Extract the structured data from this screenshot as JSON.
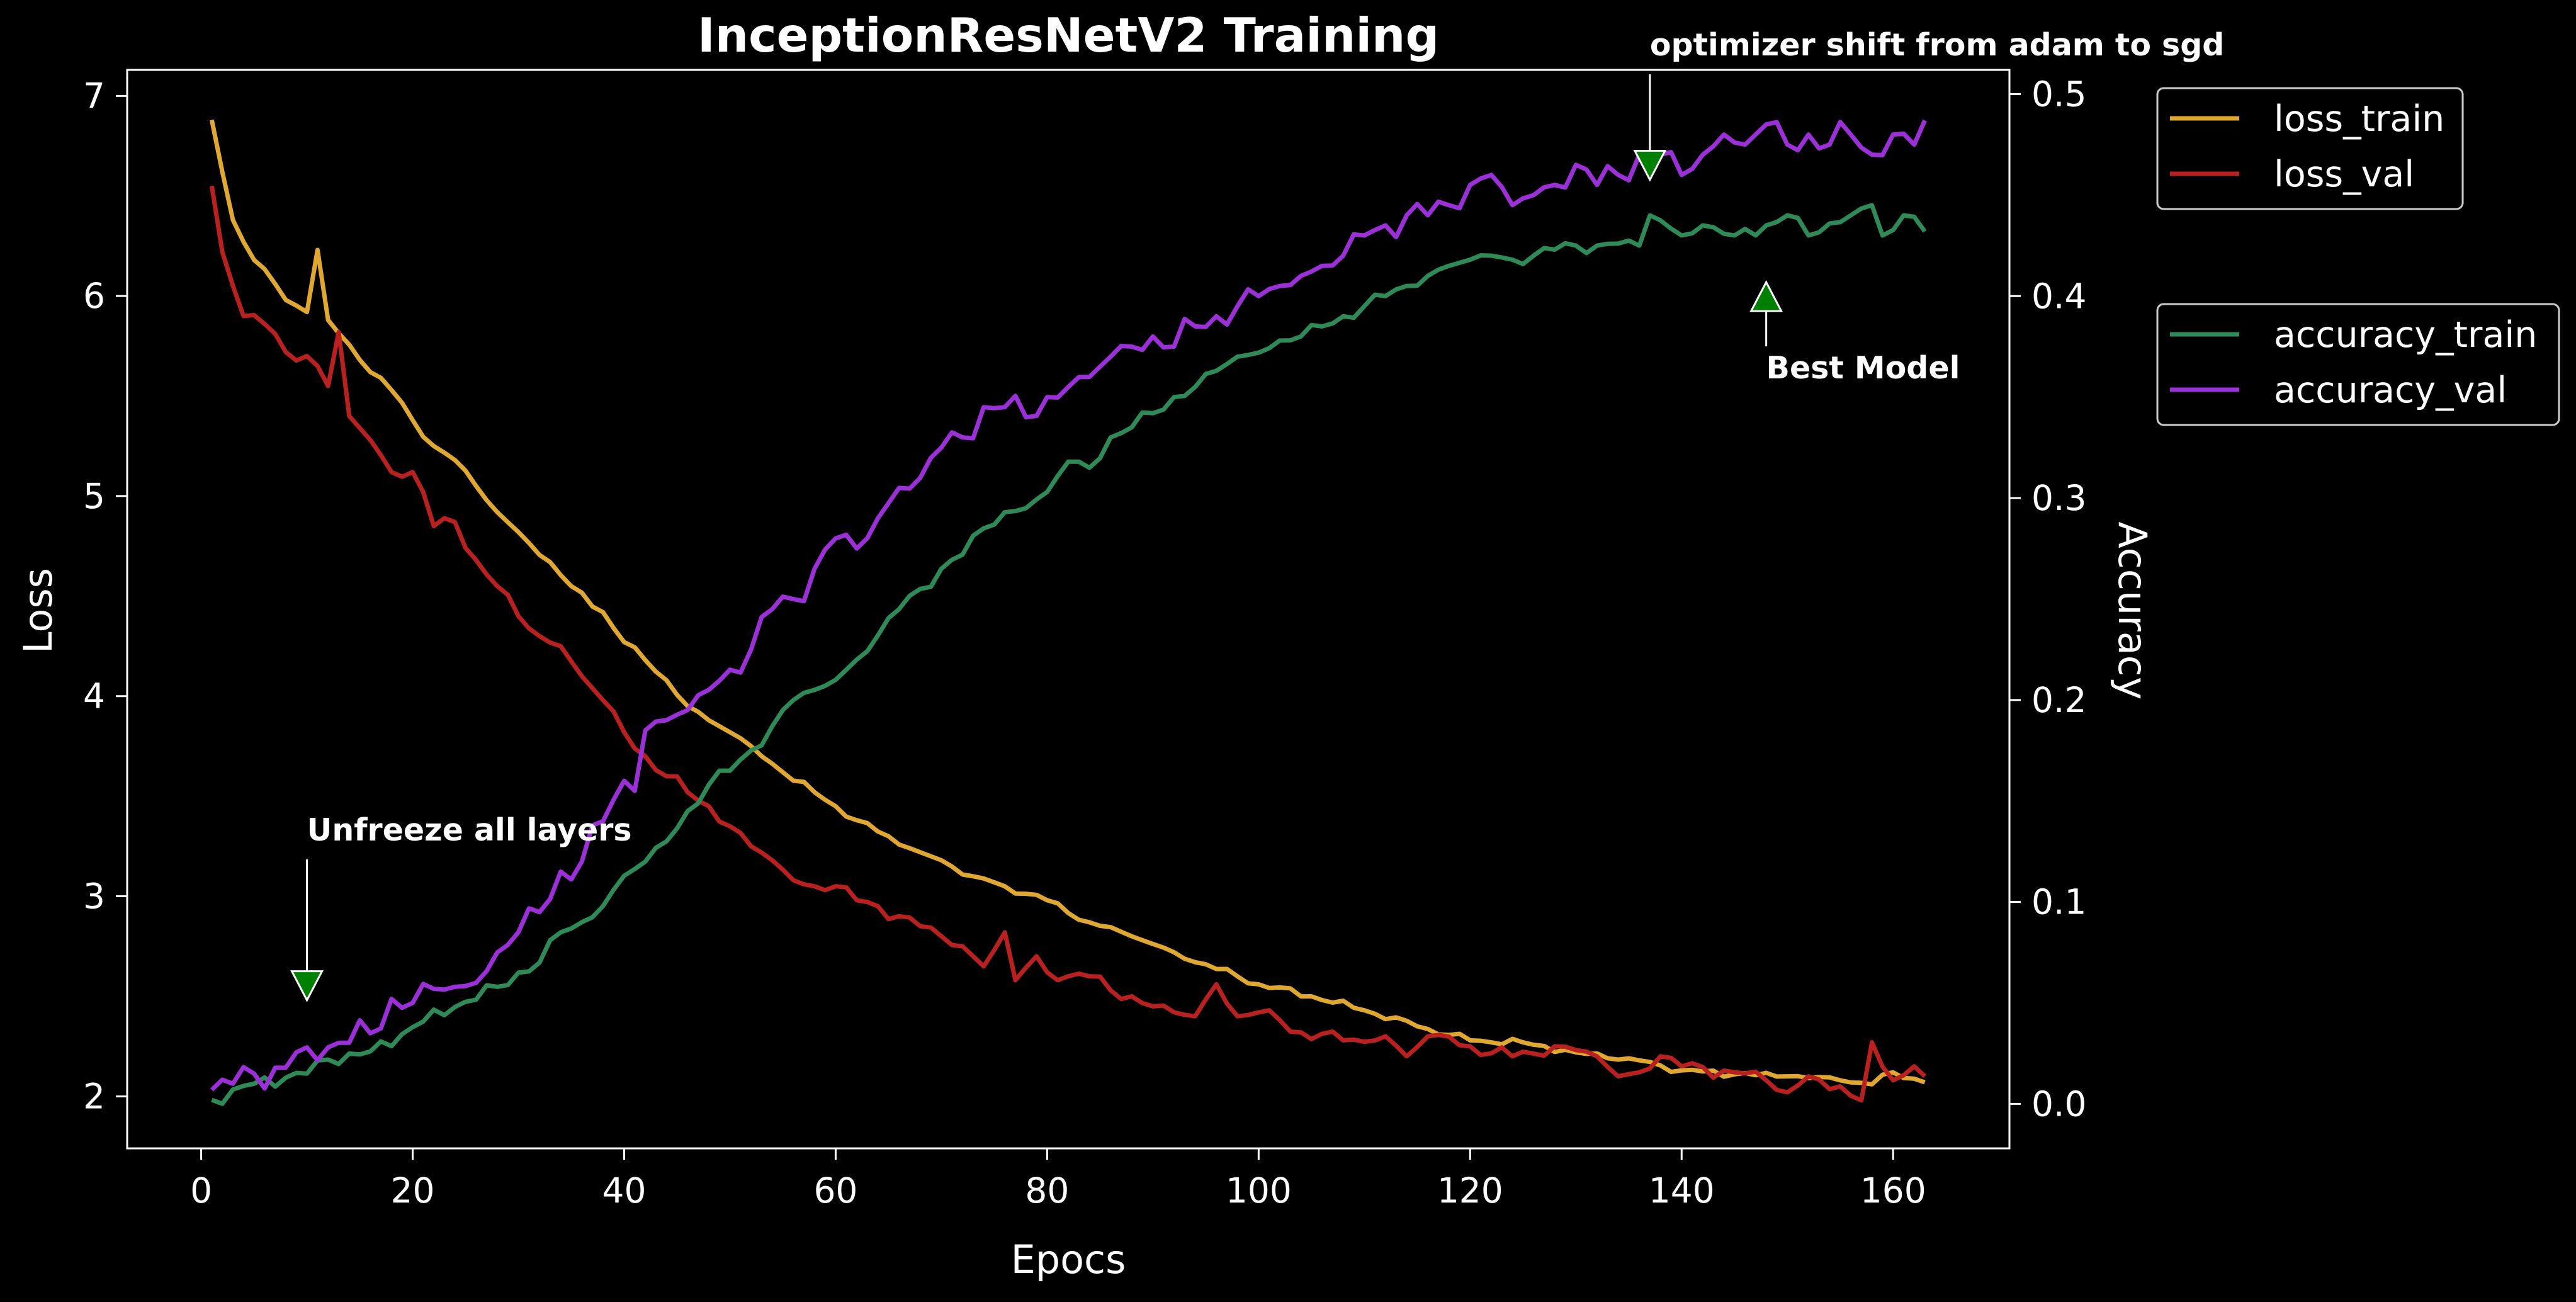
{
  "chart_data": {
    "type": "line",
    "title": "InceptionResNetV2 Training",
    "xlabel": "Epocs",
    "ylabel": "Loss",
    "ylabel_right": "Accuracy",
    "xlim": [
      -7,
      171
    ],
    "ylim": [
      1.74,
      7.13
    ],
    "ylim_right": [
      -0.022,
      0.512
    ],
    "x_ticks": [
      0,
      20,
      40,
      60,
      80,
      100,
      120,
      140,
      160
    ],
    "y_ticks": [
      2,
      3,
      4,
      5,
      6,
      7
    ],
    "y_ticks_right": [
      "0.0",
      "0.1",
      "0.2",
      "0.3",
      "0.4",
      "0.5"
    ],
    "grid": false,
    "background": "#000000",
    "x": {
      "start": 1,
      "end": 163,
      "step": 1
    },
    "series": [
      {
        "name": "loss_train",
        "axis": "left",
        "color": "#e0a830",
        "anchors": [
          [
            1,
            6.88
          ],
          [
            2,
            6.62
          ],
          [
            3,
            6.38
          ],
          [
            5,
            6.18
          ],
          [
            7,
            6.06
          ],
          [
            8,
            5.98
          ],
          [
            10,
            5.92
          ],
          [
            11,
            6.23
          ],
          [
            12,
            5.88
          ],
          [
            15,
            5.68
          ],
          [
            18,
            5.53
          ],
          [
            20,
            5.38
          ],
          [
            22,
            5.25
          ],
          [
            24,
            5.18
          ],
          [
            26,
            5.05
          ],
          [
            28,
            4.92
          ],
          [
            30,
            4.82
          ],
          [
            33,
            4.67
          ],
          [
            35,
            4.55
          ],
          [
            38,
            4.42
          ],
          [
            40,
            4.27
          ],
          [
            42,
            4.18
          ],
          [
            44,
            4.08
          ],
          [
            46,
            3.95
          ],
          [
            48,
            3.88
          ],
          [
            50,
            3.82
          ],
          [
            52,
            3.75
          ],
          [
            55,
            3.62
          ],
          [
            58,
            3.52
          ],
          [
            60,
            3.45
          ],
          [
            62,
            3.38
          ],
          [
            65,
            3.3
          ],
          [
            68,
            3.22
          ],
          [
            70,
            3.18
          ],
          [
            73,
            3.1
          ],
          [
            76,
            3.05
          ],
          [
            80,
            2.98
          ],
          [
            84,
            2.87
          ],
          [
            88,
            2.8
          ],
          [
            92,
            2.72
          ],
          [
            95,
            2.66
          ],
          [
            98,
            2.6
          ],
          [
            100,
            2.56
          ],
          [
            105,
            2.5
          ],
          [
            110,
            2.43
          ],
          [
            115,
            2.35
          ],
          [
            120,
            2.28
          ],
          [
            125,
            2.27
          ],
          [
            130,
            2.22
          ],
          [
            135,
            2.19
          ],
          [
            140,
            2.13
          ],
          [
            145,
            2.11
          ],
          [
            150,
            2.1
          ],
          [
            155,
            2.08
          ],
          [
            158,
            2.06
          ],
          [
            160,
            2.12
          ],
          [
            163,
            2.07
          ]
        ],
        "jitter": 0.02
      },
      {
        "name": "loss_val",
        "axis": "left",
        "color": "#b8211f",
        "anchors": [
          [
            1,
            6.55
          ],
          [
            2,
            6.22
          ],
          [
            3,
            6.05
          ],
          [
            4,
            5.9
          ],
          [
            6,
            5.86
          ],
          [
            8,
            5.72
          ],
          [
            10,
            5.7
          ],
          [
            11,
            5.65
          ],
          [
            12,
            5.55
          ],
          [
            13,
            5.82
          ],
          [
            14,
            5.4
          ],
          [
            16,
            5.28
          ],
          [
            18,
            5.12
          ],
          [
            20,
            5.12
          ],
          [
            21,
            5.02
          ],
          [
            22,
            4.85
          ],
          [
            24,
            4.87
          ],
          [
            26,
            4.68
          ],
          [
            28,
            4.55
          ],
          [
            30,
            4.4
          ],
          [
            32,
            4.3
          ],
          [
            34,
            4.25
          ],
          [
            36,
            4.1
          ],
          [
            38,
            3.98
          ],
          [
            40,
            3.82
          ],
          [
            42,
            3.7
          ],
          [
            44,
            3.6
          ],
          [
            46,
            3.52
          ],
          [
            48,
            3.45
          ],
          [
            50,
            3.35
          ],
          [
            52,
            3.25
          ],
          [
            54,
            3.18
          ],
          [
            56,
            3.08
          ],
          [
            58,
            3.05
          ],
          [
            60,
            3.05
          ],
          [
            62,
            2.98
          ],
          [
            64,
            2.95
          ],
          [
            66,
            2.9
          ],
          [
            68,
            2.85
          ],
          [
            70,
            2.8
          ],
          [
            72,
            2.75
          ],
          [
            74,
            2.65
          ],
          [
            76,
            2.82
          ],
          [
            77,
            2.58
          ],
          [
            79,
            2.7
          ],
          [
            80,
            2.62
          ],
          [
            84,
            2.6
          ],
          [
            86,
            2.53
          ],
          [
            88,
            2.5
          ],
          [
            90,
            2.45
          ],
          [
            92,
            2.42
          ],
          [
            94,
            2.4
          ],
          [
            96,
            2.56
          ],
          [
            98,
            2.4
          ],
          [
            100,
            2.42
          ],
          [
            104,
            2.32
          ],
          [
            108,
            2.28
          ],
          [
            112,
            2.3
          ],
          [
            114,
            2.2
          ],
          [
            116,
            2.3
          ],
          [
            120,
            2.25
          ],
          [
            124,
            2.2
          ],
          [
            128,
            2.25
          ],
          [
            132,
            2.2
          ],
          [
            134,
            2.1
          ],
          [
            136,
            2.12
          ],
          [
            138,
            2.2
          ],
          [
            140,
            2.15
          ],
          [
            145,
            2.12
          ],
          [
            148,
            2.08
          ],
          [
            150,
            2.02
          ],
          [
            152,
            2.1
          ],
          [
            155,
            2.05
          ],
          [
            157,
            1.98
          ],
          [
            158,
            2.27
          ],
          [
            160,
            2.08
          ],
          [
            162,
            2.15
          ],
          [
            163,
            2.1
          ]
        ],
        "jitter": 0.04
      },
      {
        "name": "accuracy_train",
        "axis": "right",
        "color": "#2e8b57",
        "anchors": [
          [
            1,
            0.002
          ],
          [
            5,
            0.01
          ],
          [
            8,
            0.013
          ],
          [
            10,
            0.015
          ],
          [
            12,
            0.022
          ],
          [
            16,
            0.026
          ],
          [
            20,
            0.038
          ],
          [
            24,
            0.048
          ],
          [
            28,
            0.058
          ],
          [
            30,
            0.065
          ],
          [
            32,
            0.07
          ],
          [
            34,
            0.085
          ],
          [
            36,
            0.09
          ],
          [
            38,
            0.098
          ],
          [
            40,
            0.113
          ],
          [
            42,
            0.12
          ],
          [
            44,
            0.13
          ],
          [
            46,
            0.145
          ],
          [
            48,
            0.158
          ],
          [
            50,
            0.165
          ],
          [
            52,
            0.175
          ],
          [
            54,
            0.187
          ],
          [
            56,
            0.2
          ],
          [
            58,
            0.205
          ],
          [
            60,
            0.21
          ],
          [
            62,
            0.22
          ],
          [
            64,
            0.232
          ],
          [
            66,
            0.245
          ],
          [
            68,
            0.255
          ],
          [
            70,
            0.265
          ],
          [
            72,
            0.272
          ],
          [
            74,
            0.285
          ],
          [
            76,
            0.293
          ],
          [
            78,
            0.295
          ],
          [
            80,
            0.303
          ],
          [
            82,
            0.318
          ],
          [
            84,
            0.315
          ],
          [
            86,
            0.33
          ],
          [
            88,
            0.335
          ],
          [
            90,
            0.342
          ],
          [
            92,
            0.35
          ],
          [
            94,
            0.355
          ],
          [
            96,
            0.363
          ],
          [
            98,
            0.37
          ],
          [
            100,
            0.372
          ],
          [
            102,
            0.378
          ],
          [
            104,
            0.38
          ],
          [
            106,
            0.385
          ],
          [
            108,
            0.39
          ],
          [
            110,
            0.395
          ],
          [
            112,
            0.4
          ],
          [
            114,
            0.405
          ],
          [
            116,
            0.41
          ],
          [
            118,
            0.415
          ],
          [
            120,
            0.418
          ],
          [
            122,
            0.42
          ],
          [
            124,
            0.418
          ],
          [
            126,
            0.42
          ],
          [
            128,
            0.423
          ],
          [
            130,
            0.425
          ],
          [
            132,
            0.425
          ],
          [
            134,
            0.426
          ],
          [
            136,
            0.425
          ],
          [
            137,
            0.44
          ],
          [
            140,
            0.43
          ],
          [
            142,
            0.435
          ],
          [
            145,
            0.43
          ],
          [
            148,
            0.435
          ],
          [
            150,
            0.44
          ],
          [
            152,
            0.43
          ],
          [
            154,
            0.436
          ],
          [
            156,
            0.44
          ],
          [
            158,
            0.445
          ],
          [
            159,
            0.43
          ],
          [
            161,
            0.44
          ],
          [
            163,
            0.432
          ]
        ],
        "jitter": 0.004
      },
      {
        "name": "accuracy_val",
        "axis": "right",
        "color": "#9b30d9",
        "anchors": [
          [
            1,
            0.007
          ],
          [
            3,
            0.01
          ],
          [
            5,
            0.015
          ],
          [
            8,
            0.018
          ],
          [
            10,
            0.028
          ],
          [
            12,
            0.028
          ],
          [
            16,
            0.035
          ],
          [
            18,
            0.052
          ],
          [
            20,
            0.05
          ],
          [
            22,
            0.057
          ],
          [
            24,
            0.058
          ],
          [
            26,
            0.06
          ],
          [
            28,
            0.075
          ],
          [
            30,
            0.085
          ],
          [
            32,
            0.095
          ],
          [
            34,
            0.115
          ],
          [
            36,
            0.12
          ],
          [
            38,
            0.14
          ],
          [
            40,
            0.16
          ],
          [
            41,
            0.155
          ],
          [
            42,
            0.185
          ],
          [
            44,
            0.19
          ],
          [
            46,
            0.195
          ],
          [
            48,
            0.205
          ],
          [
            50,
            0.215
          ],
          [
            52,
            0.225
          ],
          [
            54,
            0.245
          ],
          [
            56,
            0.25
          ],
          [
            58,
            0.265
          ],
          [
            60,
            0.28
          ],
          [
            62,
            0.275
          ],
          [
            64,
            0.29
          ],
          [
            66,
            0.305
          ],
          [
            68,
            0.31
          ],
          [
            70,
            0.325
          ],
          [
            72,
            0.33
          ],
          [
            74,
            0.345
          ],
          [
            76,
            0.345
          ],
          [
            78,
            0.34
          ],
          [
            80,
            0.35
          ],
          [
            82,
            0.355
          ],
          [
            84,
            0.36
          ],
          [
            86,
            0.37
          ],
          [
            88,
            0.375
          ],
          [
            90,
            0.38
          ],
          [
            92,
            0.375
          ],
          [
            94,
            0.385
          ],
          [
            96,
            0.39
          ],
          [
            98,
            0.395
          ],
          [
            100,
            0.4
          ],
          [
            102,
            0.405
          ],
          [
            104,
            0.41
          ],
          [
            106,
            0.415
          ],
          [
            108,
            0.42
          ],
          [
            110,
            0.43
          ],
          [
            112,
            0.435
          ],
          [
            114,
            0.44
          ],
          [
            116,
            0.44
          ],
          [
            118,
            0.445
          ],
          [
            120,
            0.455
          ],
          [
            122,
            0.46
          ],
          [
            124,
            0.445
          ],
          [
            126,
            0.45
          ],
          [
            128,
            0.455
          ],
          [
            130,
            0.465
          ],
          [
            132,
            0.455
          ],
          [
            134,
            0.46
          ],
          [
            136,
            0.47
          ],
          [
            138,
            0.47
          ],
          [
            140,
            0.46
          ],
          [
            142,
            0.47
          ],
          [
            144,
            0.48
          ],
          [
            146,
            0.475
          ],
          [
            148,
            0.485
          ],
          [
            150,
            0.475
          ],
          [
            152,
            0.48
          ],
          [
            154,
            0.475
          ],
          [
            156,
            0.48
          ],
          [
            158,
            0.47
          ],
          [
            160,
            0.48
          ],
          [
            162,
            0.475
          ],
          [
            163,
            0.487
          ]
        ],
        "jitter": 0.009
      }
    ],
    "legends": [
      {
        "entries": [
          "loss_train",
          "loss_val"
        ],
        "placement": "outside-top-right"
      },
      {
        "entries": [
          "accuracy_train",
          "accuracy_val"
        ],
        "placement": "outside-right"
      }
    ],
    "annotations": [
      {
        "text": "Unfreeze all layers",
        "x": 10,
        "y": 2.55,
        "axis": "left",
        "arrow": "down",
        "marker_color": "#008000"
      },
      {
        "text": "optimizer shift from adam to sgd",
        "x": 137,
        "y": 6.65,
        "axis": "left",
        "arrow": "down",
        "marker_color": "#008000"
      },
      {
        "text": "Best Model",
        "x": 148,
        "y": 6.0,
        "axis": "left",
        "arrow": "up",
        "marker_color": "#008000"
      }
    ]
  }
}
